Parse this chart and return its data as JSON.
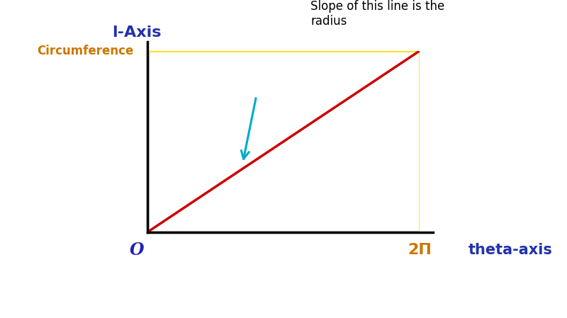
{
  "background_color": "#ffffff",
  "axis_color": "#000000",
  "diagonal_line_color": "#cc0000",
  "yellow_line_color": "#ffdd00",
  "origin_label": "O",
  "origin_label_color": "#2222bb",
  "x_axis_label": "theta-axis",
  "x_axis_label_color": "#2233aa",
  "y_axis_label": "l-Axis",
  "y_axis_label_color": "#2233aa",
  "circumference_label": "Circumference",
  "circumference_label_color": "#cc7700",
  "two_pi_label": "2Π",
  "two_pi_label_color": "#cc7700",
  "annotation_text": "Slope of this line is the\nradius",
  "annotation_color": "#000000",
  "arrow_color": "#00aacc",
  "figsize": [
    8.0,
    4.49
  ],
  "dpi": 100
}
